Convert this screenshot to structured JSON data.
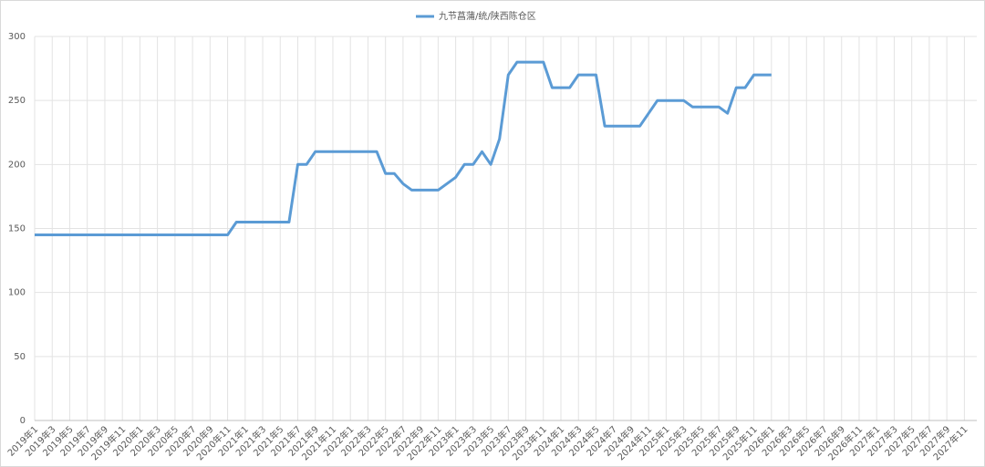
{
  "chart_data": {
    "type": "line",
    "categories": [
      "2019年1",
      null,
      "2019年3",
      null,
      "2019年5",
      null,
      "2019年7",
      null,
      "2019年9",
      null,
      "2019年11",
      null,
      "2020年1",
      null,
      "2020年3",
      null,
      "2020年5",
      null,
      "2020年7",
      null,
      "2020年9",
      null,
      "2020年11",
      null,
      "2021年1",
      null,
      "2021年3",
      null,
      "2021年5",
      null,
      "2021年7",
      null,
      "2021年9",
      null,
      "2021年11",
      null,
      "2022年1",
      null,
      "2022年3",
      null,
      "2022年5",
      null,
      "2022年7",
      null,
      "2022年9",
      null,
      "2022年11",
      null,
      "2023年1",
      null,
      "2023年3",
      null,
      "2023年5",
      null,
      "2023年7",
      null,
      "2023年9",
      null,
      "2023年11",
      null,
      "2024年1",
      null,
      "2024年3",
      null,
      "2024年5",
      null,
      "2024年7",
      null,
      "2024年9",
      null,
      "2024年11",
      null,
      "2025年1",
      null,
      "2025年3",
      null,
      "2025年5",
      null,
      "2025年7",
      null,
      "2025年9",
      null,
      "2025年11",
      null,
      "2026年1",
      null,
      "2026年3",
      null,
      "2026年5",
      null,
      "2026年7",
      null,
      "2026年9",
      null,
      "2026年11",
      null,
      "2027年1",
      null,
      "2027年3",
      null,
      "2027年5",
      null,
      "2027年7",
      null,
      "2027年9",
      null,
      "2027年11",
      null
    ],
    "series": [
      {
        "name": "九节菖蒲/统/陕西陈仓区",
        "color": "#5b9bd5",
        "values": [
          145,
          145,
          145,
          145,
          145,
          145,
          145,
          145,
          145,
          145,
          145,
          145,
          145,
          145,
          145,
          145,
          145,
          145,
          145,
          145,
          145,
          145,
          145,
          155,
          155,
          155,
          155,
          155,
          155,
          155,
          200,
          200,
          210,
          210,
          210,
          210,
          210,
          210,
          210,
          210,
          193,
          193,
          185,
          180,
          180,
          180,
          180,
          185,
          190,
          200,
          200,
          210,
          200,
          220,
          270,
          280,
          280,
          280,
          280,
          260,
          260,
          260,
          270,
          270,
          270,
          230,
          230,
          230,
          230,
          230,
          240,
          250,
          250,
          250,
          250,
          245,
          245,
          245,
          245,
          240,
          260,
          260,
          270,
          270,
          270,
          null,
          null,
          null,
          null,
          null,
          null,
          null,
          null,
          null,
          null,
          null,
          null,
          null,
          null,
          null,
          null,
          null,
          null,
          null,
          null,
          null,
          null,
          null
        ]
      }
    ],
    "ylim": [
      0,
      300
    ],
    "yticks": [
      0,
      50,
      100,
      150,
      200,
      250,
      300
    ],
    "grid": true,
    "legend": "top"
  }
}
